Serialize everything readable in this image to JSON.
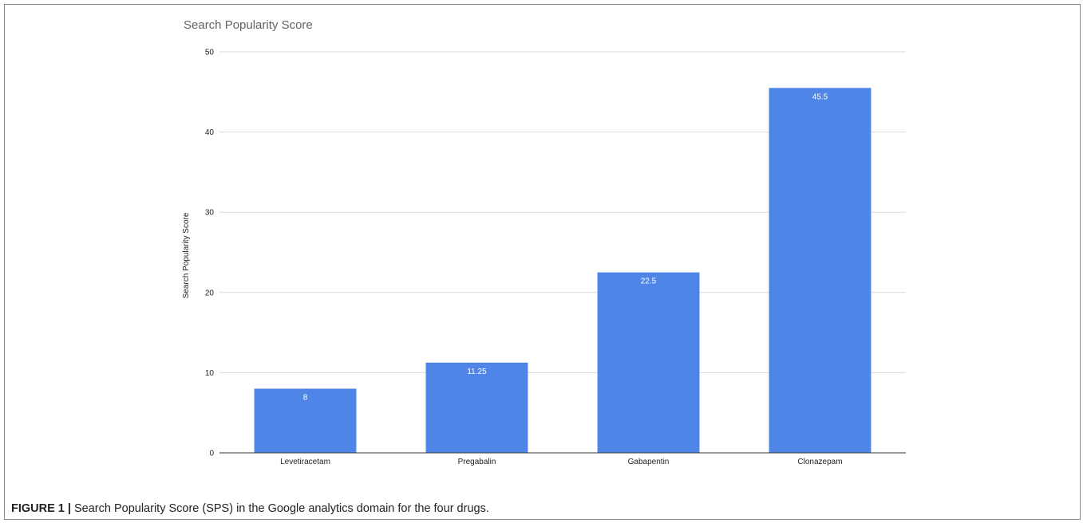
{
  "chart_data": {
    "type": "bar",
    "title": "Search Popularity Score",
    "xlabel": "",
    "ylabel": "Search Popularity Score",
    "categories": [
      "Levetiracetam",
      "Pregabalin",
      "Gabapentin",
      "Clonazepam"
    ],
    "values": [
      8,
      11.25,
      22.5,
      45.5
    ],
    "data_labels": [
      "8",
      "11.25",
      "22.5",
      "45.5"
    ],
    "ylim": [
      0,
      50
    ],
    "yticks": [
      0,
      10,
      20,
      30,
      40,
      50
    ],
    "grid": true,
    "legend": "none",
    "bar_color": "#5085e8",
    "gridline_color": "#d9d9d9",
    "axis_color": "#333333"
  },
  "caption": {
    "label": "FIGURE 1 |",
    "text": " Search Popularity Score (SPS) in the Google analytics domain for the four drugs."
  }
}
